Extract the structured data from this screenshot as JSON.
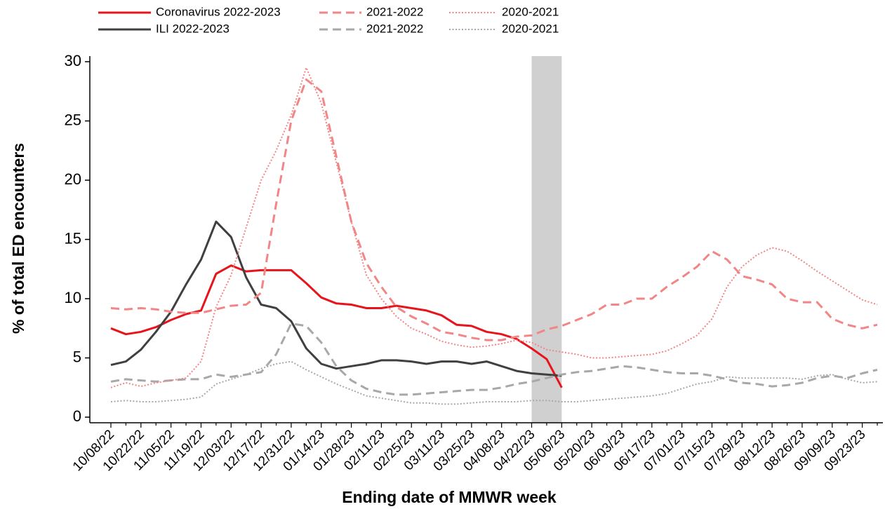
{
  "chart_data": {
    "type": "line",
    "y_label": "% of total ED encounters",
    "x_label": "Ending date of MMWR week",
    "categories": [
      "10/08/22",
      null,
      "10/22/22",
      null,
      "11/05/22",
      null,
      "11/19/22",
      null,
      "12/03/22",
      null,
      "12/17/22",
      null,
      "12/31/22",
      null,
      "01/14/23",
      null,
      "01/28/23",
      null,
      "02/11/23",
      null,
      "02/25/23",
      null,
      "03/11/23",
      null,
      "03/25/23",
      null,
      "04/08/23",
      null,
      "04/22/23",
      null,
      "05/06/23",
      null,
      "05/20/23",
      null,
      "06/03/23",
      null,
      "06/17/23",
      null,
      "07/01/23",
      null,
      "07/15/23",
      null,
      "07/29/23",
      null,
      "08/12/23",
      null,
      "08/26/23",
      null,
      "09/09/23",
      null,
      "09/23/23",
      null
    ],
    "shaded_span": [
      "04/22/23",
      "05/06/23"
    ],
    "shade_color": "#d0d0d0",
    "ylim": [
      0,
      30
    ],
    "yticks": [
      0,
      5,
      10,
      15,
      20,
      25,
      30
    ],
    "series": [
      {
        "name": "Coronavirus 2022-2023",
        "color": "#e8141c",
        "dash": "solid",
        "values": [
          7.5,
          7.0,
          7.2,
          7.6,
          8.2,
          8.7,
          9.0,
          12.1,
          12.8,
          12.3,
          12.4,
          12.4,
          12.4,
          11.3,
          10.1,
          9.6,
          9.5,
          9.2,
          9.2,
          9.4,
          9.2,
          9.0,
          8.6,
          7.8,
          7.7,
          7.2,
          7.0,
          6.6,
          5.8,
          4.9,
          2.5,
          null,
          null,
          null,
          null,
          null,
          null,
          null,
          null,
          null,
          null,
          null,
          null,
          null,
          null,
          null,
          null,
          null,
          null,
          null,
          null,
          null
        ]
      },
      {
        "name": "ILI 2022-2023",
        "color": "#404040",
        "dash": "solid",
        "values": [
          4.4,
          4.7,
          5.7,
          7.2,
          8.9,
          11.2,
          13.3,
          16.5,
          15.2,
          11.8,
          9.5,
          9.2,
          8.1,
          5.8,
          4.5,
          4.1,
          4.3,
          4.5,
          4.8,
          4.8,
          4.7,
          4.5,
          4.7,
          4.7,
          4.5,
          4.7,
          4.3,
          3.9,
          3.7,
          3.6,
          3.5,
          null,
          null,
          null,
          null,
          null,
          null,
          null,
          null,
          null,
          null,
          null,
          null,
          null,
          null,
          null,
          null,
          null,
          null,
          null,
          null,
          null
        ]
      },
      {
        "name": "2021-2022",
        "color": "#f28585",
        "dash": "dashed",
        "values": [
          9.2,
          9.1,
          9.2,
          9.1,
          8.9,
          8.8,
          8.8,
          9.1,
          9.4,
          9.5,
          10.5,
          18.0,
          25.0,
          28.5,
          27.5,
          22.0,
          16.5,
          13.0,
          11.0,
          9.3,
          8.5,
          7.9,
          7.2,
          7.0,
          6.7,
          6.5,
          6.5,
          6.8,
          6.9,
          7.4,
          7.7,
          8.2,
          8.7,
          9.5,
          9.5,
          10.0,
          10.0,
          11.0,
          11.8,
          12.7,
          14.0,
          13.3,
          11.9,
          11.6,
          11.2,
          10.0,
          9.7,
          9.7,
          8.3,
          7.8,
          7.5,
          7.8
        ]
      },
      {
        "name": "2021-2022",
        "color": "#a8a8a8",
        "dash": "dashed",
        "values": [
          3.0,
          3.2,
          3.1,
          3.0,
          3.1,
          3.2,
          3.2,
          3.6,
          3.4,
          3.6,
          3.8,
          5.3,
          7.9,
          7.7,
          6.3,
          4.3,
          3.1,
          2.4,
          2.1,
          1.9,
          1.9,
          2.0,
          2.1,
          2.2,
          2.3,
          2.3,
          2.5,
          2.8,
          3.0,
          3.3,
          3.6,
          3.8,
          3.9,
          4.1,
          4.3,
          4.2,
          4.0,
          3.8,
          3.7,
          3.7,
          3.5,
          3.2,
          2.9,
          2.8,
          2.6,
          2.7,
          2.9,
          3.3,
          3.5,
          3.3,
          3.7,
          4.0
        ]
      },
      {
        "name": "2020-2021",
        "color": "#f28585",
        "dash": "dotted",
        "values": [
          2.5,
          2.9,
          2.6,
          2.9,
          3.1,
          3.3,
          4.7,
          9.3,
          12.0,
          16.0,
          20.0,
          22.5,
          25.5,
          29.5,
          26.5,
          21.5,
          16.5,
          12.0,
          10.0,
          8.5,
          7.5,
          7.0,
          6.4,
          6.1,
          5.9,
          6.0,
          6.2,
          6.5,
          6.3,
          5.7,
          5.5,
          5.3,
          5.0,
          5.0,
          5.1,
          5.2,
          5.3,
          5.6,
          6.2,
          6.9,
          8.3,
          11.0,
          12.7,
          13.7,
          14.3,
          14.0,
          13.2,
          12.3,
          11.5,
          10.7,
          9.9,
          9.5
        ]
      },
      {
        "name": "2020-2021",
        "color": "#a8a8a8",
        "dash": "dotted",
        "values": [
          1.3,
          1.4,
          1.3,
          1.3,
          1.4,
          1.5,
          1.7,
          2.8,
          3.2,
          3.6,
          4.1,
          4.5,
          4.7,
          4.0,
          3.4,
          2.8,
          2.3,
          1.8,
          1.6,
          1.4,
          1.2,
          1.2,
          1.1,
          1.1,
          1.2,
          1.3,
          1.3,
          1.3,
          1.4,
          1.4,
          1.3,
          1.3,
          1.4,
          1.5,
          1.6,
          1.7,
          1.8,
          2.0,
          2.4,
          2.8,
          3.0,
          3.4,
          3.3,
          3.3,
          3.3,
          3.3,
          3.2,
          3.5,
          3.6,
          3.2,
          2.9,
          3.0
        ]
      }
    ]
  }
}
